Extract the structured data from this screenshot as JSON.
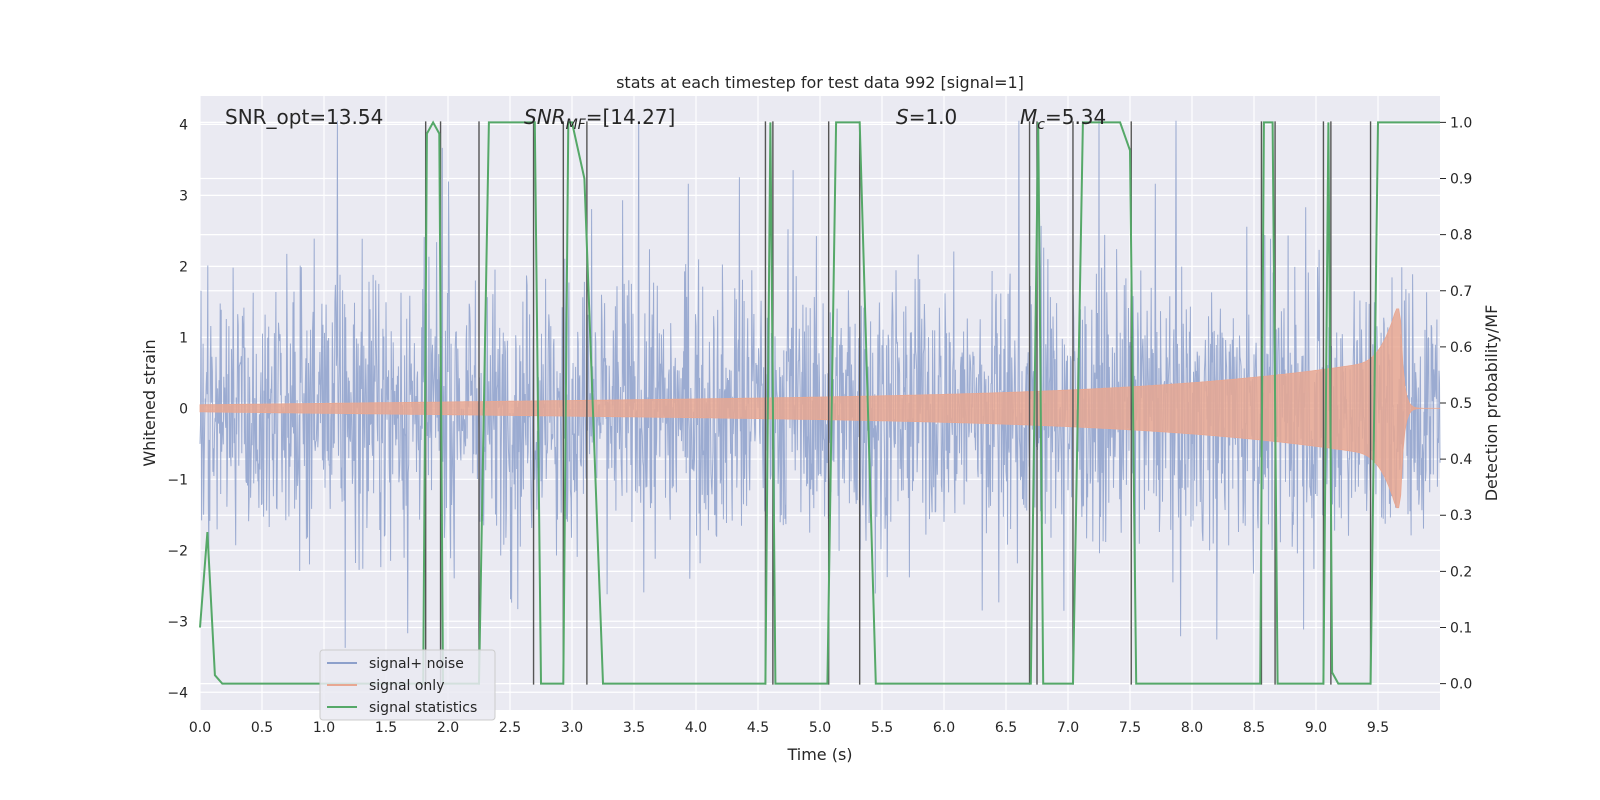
{
  "chart_data": {
    "type": "line",
    "title": "stats at each timestep for test data 992 [signal=1]",
    "xlabel": "Time (s)",
    "ylabel_left": "Whitened strain",
    "ylabel_right": "Detection probability/MF",
    "xlim": [
      0.0,
      10.0
    ],
    "ylim_left": [
      -4.25,
      4.4
    ],
    "ylim_right": [
      -0.047,
      1.047
    ],
    "x_ticks": [
      0.0,
      0.5,
      1.0,
      1.5,
      2.0,
      2.5,
      3.0,
      3.5,
      4.0,
      4.5,
      5.0,
      5.5,
      6.0,
      6.5,
      7.0,
      7.5,
      8.0,
      8.5,
      9.0,
      9.5
    ],
    "x_tick_labels": [
      "0.0",
      "0.5",
      "1.0",
      "1.5",
      "2.0",
      "2.5",
      "3.0",
      "3.5",
      "4.0",
      "4.5",
      "5.0",
      "5.5",
      "6.0",
      "6.5",
      "7.0",
      "7.5",
      "8.0",
      "8.5",
      "9.0",
      "9.5"
    ],
    "y_ticks_left": [
      -4,
      -3,
      -2,
      -1,
      0,
      1,
      2,
      3,
      4
    ],
    "y_tick_labels_left": [
      "−4",
      "−3",
      "−2",
      "−1",
      "0",
      "1",
      "2",
      "3",
      "4"
    ],
    "y_ticks_right": [
      0.0,
      0.1,
      0.2,
      0.3,
      0.4,
      0.5,
      0.6,
      0.7,
      0.8,
      0.9,
      1.0
    ],
    "y_tick_labels_right": [
      "0.0",
      "0.1",
      "0.2",
      "0.3",
      "0.4",
      "0.5",
      "0.6",
      "0.7",
      "0.8",
      "0.9",
      "1.0"
    ],
    "grid": true,
    "legend_position": "lower-left",
    "annotations": {
      "snr_opt": "SNR_opt=13.54",
      "snr_mf_italic": "SNR",
      "snr_mf_sub": "MF",
      "snr_mf_value": "=[14.27]",
      "s_italic": "S",
      "s_value": "=1.0",
      "mc_italic": "M",
      "mc_sub": "c",
      "mc_value": "=5.34"
    },
    "series": [
      {
        "name": "signal+ noise",
        "color": "#8da0cb",
        "axis": "left",
        "description_type": "noise",
        "amplitude_envelope": 2.6
      },
      {
        "name": "signal only",
        "color": "#e8a792",
        "axis": "left",
        "description_type": "chirp",
        "x_start": 0.0,
        "x_merger": 9.68,
        "peak_amplitude": 1.4
      },
      {
        "name": "signal statistics",
        "color": "#55a868",
        "axis": "right",
        "x": [
          0.0,
          0.06,
          0.12,
          0.18,
          1.8,
          1.83,
          1.88,
          1.93,
          1.96,
          2.25,
          2.33,
          2.7,
          2.75,
          2.93,
          2.97,
          3.0,
          3.1,
          3.25,
          4.56,
          4.6,
          4.64,
          4.7,
          5.06,
          5.13,
          5.32,
          5.45,
          6.7,
          6.76,
          6.8,
          7.04,
          7.12,
          7.42,
          7.5,
          7.55,
          8.55,
          8.58,
          8.65,
          8.69,
          9.06,
          9.1,
          9.13,
          9.18,
          9.25,
          9.44,
          9.5,
          10.0
        ],
        "y": [
          0.1,
          0.27,
          0.015,
          0.0,
          0.0,
          0.98,
          1.0,
          0.98,
          0.0,
          0.0,
          1.0,
          1.0,
          0.0,
          0.0,
          1.0,
          1.0,
          0.9,
          0.0,
          0.0,
          1.0,
          0.0,
          0.0,
          0.0,
          1.0,
          1.0,
          0.0,
          0.0,
          1.0,
          0.0,
          0.0,
          1.0,
          1.0,
          0.95,
          0.0,
          0.0,
          1.0,
          1.0,
          0.0,
          0.0,
          1.0,
          0.02,
          0.0,
          0.0,
          0.0,
          1.0,
          1.0
        ]
      }
    ],
    "vertical_lines_x": [
      1.82,
      1.94,
      2.25,
      2.69,
      2.93,
      3.12,
      4.56,
      4.62,
      5.07,
      5.32,
      6.69,
      6.75,
      7.04,
      7.51,
      8.56,
      8.67,
      9.06,
      9.12,
      9.44
    ]
  }
}
